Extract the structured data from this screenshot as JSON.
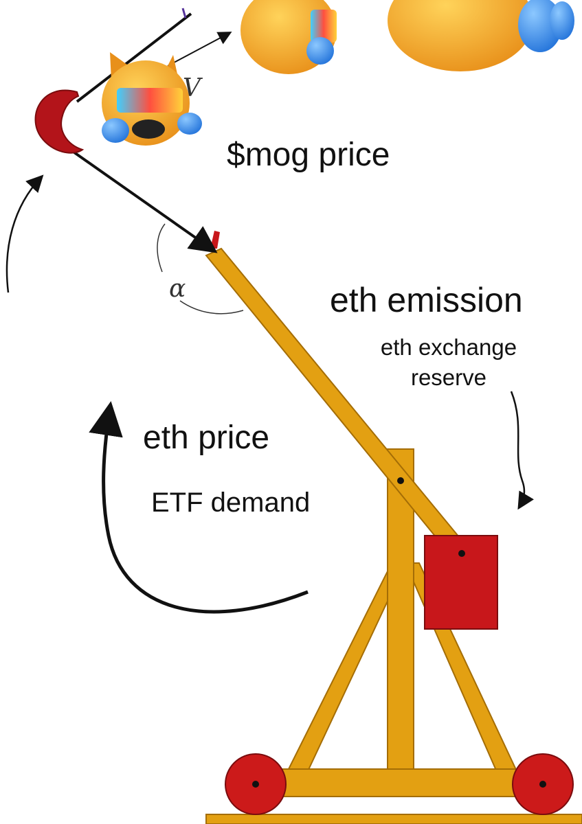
{
  "labels": {
    "mog_price": "$mog price",
    "eth_emission": "eth emission",
    "eth_exchange_reserve": "eth exchange reserve",
    "eth_price": "eth price",
    "etf_demand": "ETF demand",
    "angle_symbol": "α",
    "velocity_symbol": "V"
  },
  "colors": {
    "wood": "#e3a012",
    "wood_dark": "#a46d06",
    "counterweight": "#c8171b",
    "wheel": "#cc1a1a",
    "emoji_face": "#f5a623",
    "emoji_tear": "#2f86e6",
    "arrow": "#111111"
  },
  "icons": [
    "crying-cat-emoji-icon",
    "crying-face-emoji-icon",
    "crying-face-emoji-icon"
  ]
}
